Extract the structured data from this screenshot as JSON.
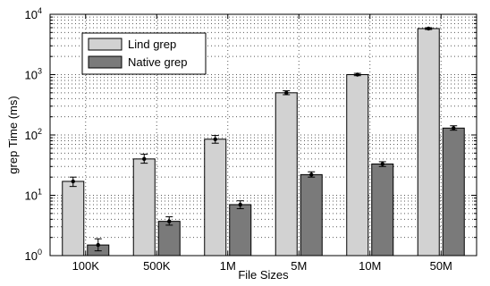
{
  "chart_data": {
    "type": "bar",
    "title": "",
    "xlabel": "File Sizes",
    "ylabel": "grep Time (ms)",
    "yscale": "log",
    "ylim": [
      1,
      10000
    ],
    "yticks": [
      {
        "value": 1,
        "base": "10",
        "exp": "0"
      },
      {
        "value": 10,
        "base": "10",
        "exp": "1"
      },
      {
        "value": 100,
        "base": "10",
        "exp": "2"
      },
      {
        "value": 1000,
        "base": "10",
        "exp": "3"
      },
      {
        "value": 10000,
        "base": "10",
        "exp": "4"
      }
    ],
    "categories": [
      "100K",
      "500K",
      "1M",
      "5M",
      "10M",
      "50M"
    ],
    "grid": true,
    "legend_position": "top-left",
    "series": [
      {
        "name": "Lind grep",
        "color": "#d2d2d2",
        "values": [
          17,
          40,
          85,
          500,
          1000,
          5800
        ],
        "err_low": [
          14,
          34,
          73,
          465,
          960,
          5600
        ],
        "err_high": [
          20,
          48,
          98,
          540,
          1050,
          6000
        ]
      },
      {
        "name": "Native grep",
        "color": "#7a7a7a",
        "values": [
          1.5,
          3.7,
          7,
          22,
          33,
          130
        ],
        "err_low": [
          1.2,
          3.2,
          6.0,
          20,
          30,
          120
        ],
        "err_high": [
          1.9,
          4.4,
          8.1,
          24.5,
          36,
          142
        ]
      }
    ]
  }
}
